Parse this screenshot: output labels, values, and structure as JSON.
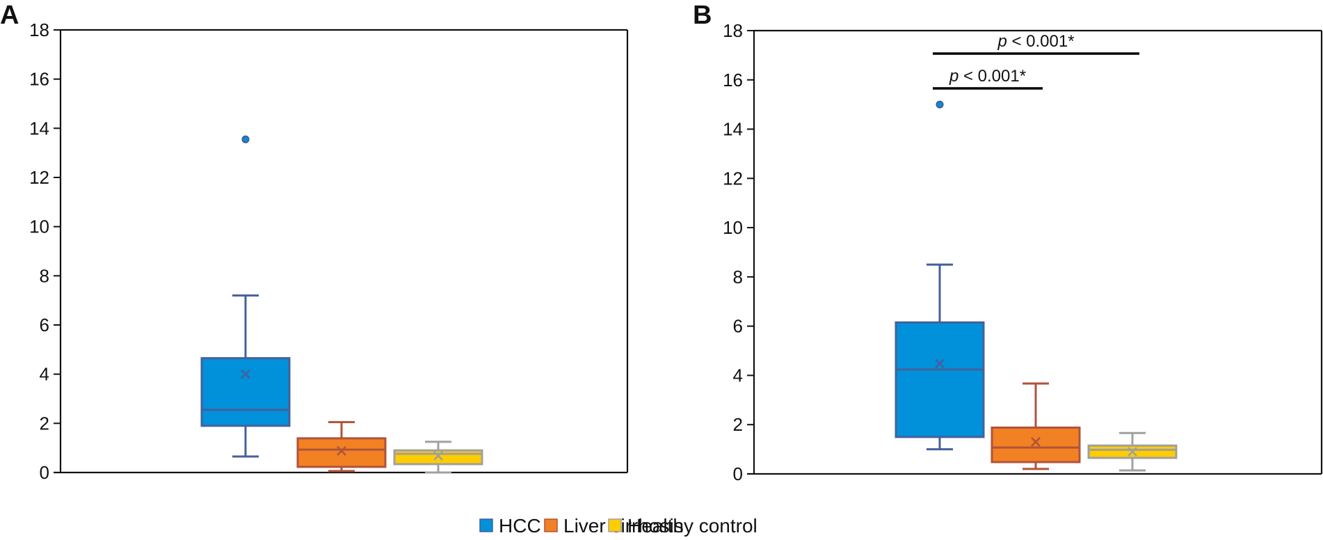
{
  "chart_data": [
    {
      "type": "box",
      "panel_label": "A",
      "title": "",
      "xlabel": "",
      "ylabel": "",
      "ylim": [
        0,
        18
      ],
      "yticks": [
        0,
        2,
        4,
        6,
        8,
        10,
        12,
        14,
        16,
        18
      ],
      "grid": false,
      "series": [
        {
          "name": "HCC",
          "whisker_low": 0.65,
          "q1": 1.9,
          "median": 2.55,
          "q3": 4.65,
          "whisker_high": 7.2,
          "mean": 4.0,
          "outliers": [
            13.55
          ]
        },
        {
          "name": "Liver cirrhosis",
          "whisker_low": 0.06,
          "q1": 0.23,
          "median": 0.93,
          "q3": 1.39,
          "whisker_high": 2.05,
          "mean": 0.88,
          "outliers": []
        },
        {
          "name": "Healthy control",
          "whisker_low": 0.0,
          "q1": 0.34,
          "median": 0.76,
          "q3": 0.9,
          "whisker_high": 1.25,
          "mean": 0.68,
          "outliers": []
        }
      ],
      "annotations": []
    },
    {
      "type": "box",
      "panel_label": "B",
      "title": "",
      "xlabel": "",
      "ylabel": "",
      "ylim": [
        0,
        18
      ],
      "yticks": [
        0,
        2,
        4,
        6,
        8,
        10,
        12,
        14,
        16,
        18
      ],
      "grid": false,
      "series": [
        {
          "name": "HCC",
          "whisker_low": 1.0,
          "q1": 1.5,
          "median": 4.24,
          "q3": 6.15,
          "whisker_high": 8.5,
          "mean": 4.48,
          "outliers": [
            15.0
          ]
        },
        {
          "name": "Liver cirrhosis",
          "whisker_low": 0.2,
          "q1": 0.48,
          "median": 1.07,
          "q3": 1.88,
          "whisker_high": 3.67,
          "mean": 1.3,
          "outliers": []
        },
        {
          "name": "Healthy control",
          "whisker_low": 0.14,
          "q1": 0.65,
          "median": 0.98,
          "q3": 1.15,
          "whisker_high": 1.66,
          "mean": 0.9,
          "outliers": []
        }
      ],
      "annotations": [
        {
          "from": "HCC",
          "to": "Liver cirrhosis",
          "p_symbol": "p",
          "text": " < 0.001*",
          "level": 1
        },
        {
          "from": "HCC",
          "to": "Healthy control",
          "p_symbol": "p",
          "text": " < 0.001*",
          "level": 2
        }
      ]
    }
  ],
  "legend": {
    "position": "bottom-center",
    "items": [
      {
        "label": "HCC",
        "fill": "#0091da",
        "stroke": "#44619a"
      },
      {
        "label": "Liver cirrhosis",
        "fill": "#f28123",
        "stroke": "#b0533a"
      },
      {
        "label": "Healthy control",
        "fill": "#ffcc00",
        "stroke": "#a0a0a0"
      }
    ]
  },
  "colors": {
    "HCC": {
      "fill": "#0091da",
      "stroke": "#44619a"
    },
    "Liver cirrhosis": {
      "fill": "#f28123",
      "stroke": "#b0533a"
    },
    "Healthy control": {
      "fill": "#ffcc00",
      "stroke": "#a0a0a0"
    },
    "axis": "#111111",
    "annotation_bar": "#000000"
  }
}
